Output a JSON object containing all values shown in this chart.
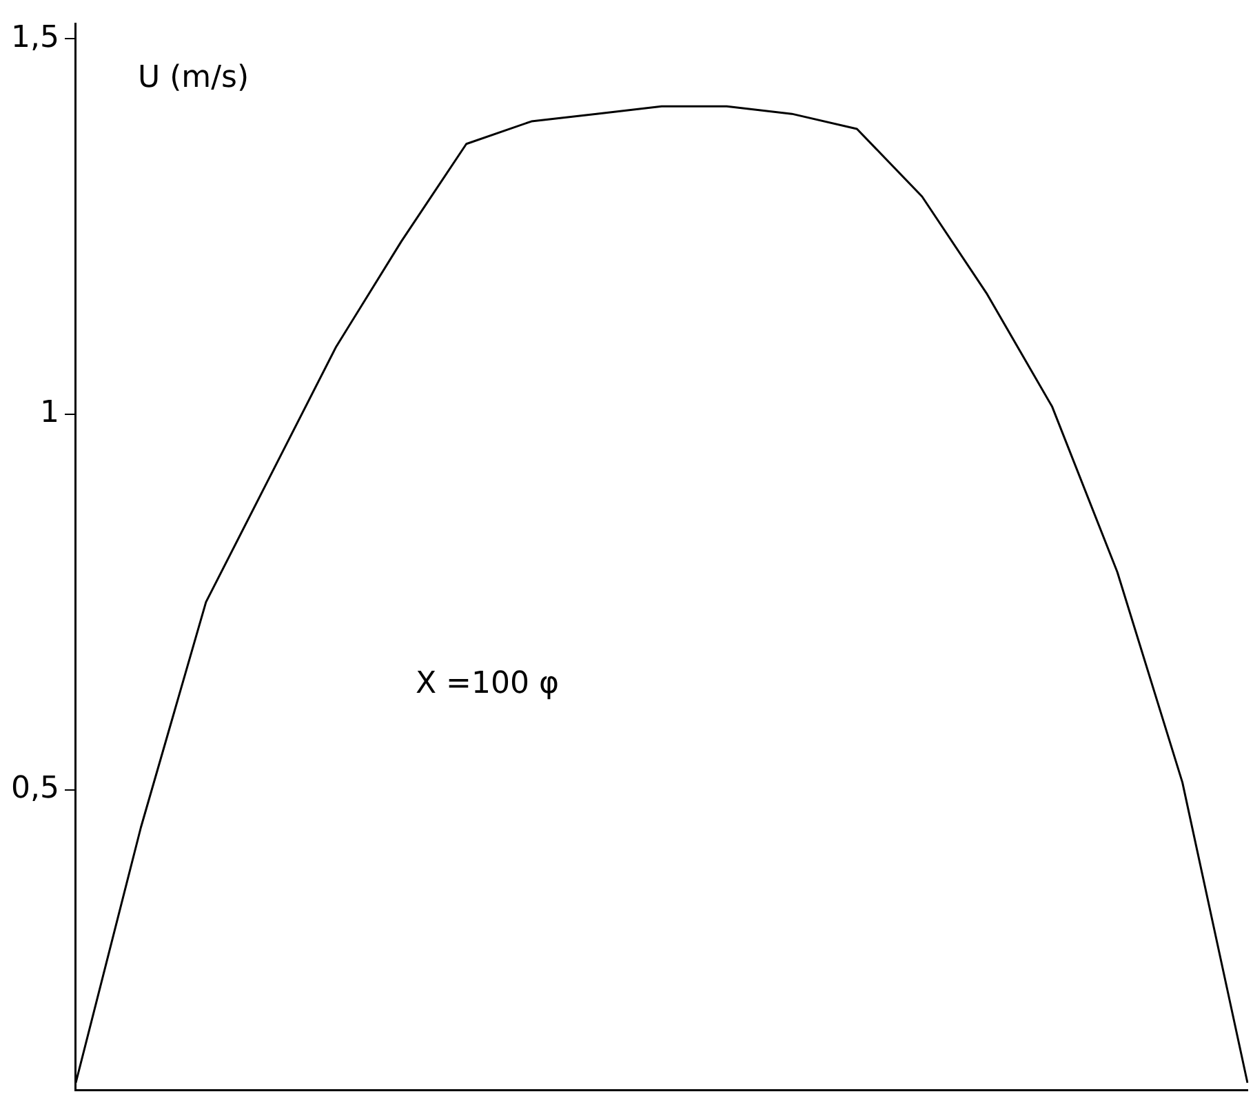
{
  "chart_data": {
    "type": "line",
    "ylabel": "U (m/s)",
    "annotations": [
      "X =100 φ"
    ],
    "categories": [
      null,
      null,
      null,
      null,
      null,
      null,
      null,
      null,
      null,
      null,
      null,
      null,
      null,
      null,
      null,
      null,
      null,
      null,
      null
    ],
    "series": [
      {
        "color": "#000000",
        "values": [
          0.11,
          0.45,
          0.75,
          0.92,
          1.09,
          1.23,
          1.36,
          1.39,
          1.4,
          1.41,
          1.41,
          1.4,
          1.38,
          1.29,
          1.16,
          1.01,
          0.79,
          0.51,
          0.11
        ]
      }
    ],
    "ylim": [
      0.1,
      1.52
    ],
    "yticks": [
      {
        "value": 0.5,
        "label": "0,5"
      },
      {
        "value": 1,
        "label": "1"
      },
      {
        "value": 1.5,
        "label": "1,5"
      }
    ],
    "grid": false,
    "legend": false,
    "tick_labels": "y",
    "marker": "none",
    "line_style": "solid"
  }
}
